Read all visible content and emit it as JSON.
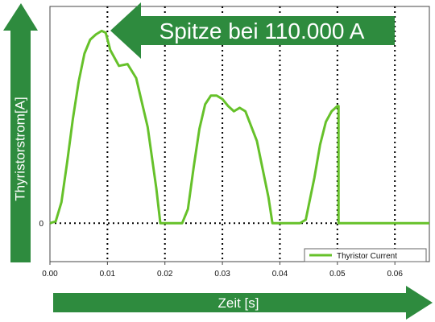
{
  "colors": {
    "arrow_green": "#2e8b3e",
    "series_green": "#66c12a",
    "grid": "#000000",
    "frame": "#444444"
  },
  "chart_data": {
    "type": "line",
    "title": "",
    "xlabel": "Zeit [s]",
    "ylabel": "Thyristorstrom[A]",
    "xlim": [
      0.0,
      0.066
    ],
    "ylim": [
      -22000,
      124000
    ],
    "x_ticks": [
      0.0,
      0.01,
      0.02,
      0.03,
      0.04,
      0.05,
      0.06
    ],
    "x_tick_labels": [
      "0.00",
      "0.01",
      "0.02",
      "0.03",
      "0.04",
      "0.05",
      "0.06"
    ],
    "y_ticks": [
      0
    ],
    "y_tick_labels": [
      "0"
    ],
    "grid": "dotted vertical lines at x ticks, dotted horizontal line at y = 0",
    "legend_position": "bottom-right",
    "annotation": "Spitze bei 110.000 A",
    "series": [
      {
        "name": "Thyristor Current",
        "color": "#66c12a",
        "x": [
          0.0,
          0.001,
          0.002,
          0.003,
          0.004,
          0.005,
          0.006,
          0.007,
          0.008,
          0.009,
          0.0097,
          0.0105,
          0.012,
          0.0135,
          0.015,
          0.017,
          0.0185,
          0.0192,
          0.021,
          0.023,
          0.024,
          0.025,
          0.026,
          0.027,
          0.028,
          0.029,
          0.03,
          0.031,
          0.032,
          0.033,
          0.034,
          0.036,
          0.038,
          0.0387,
          0.041,
          0.0435,
          0.0445,
          0.046,
          0.047,
          0.048,
          0.049,
          0.05,
          0.0502,
          0.0502,
          0.066
        ],
        "y": [
          0,
          1000,
          12000,
          35000,
          60000,
          81000,
          97000,
          105000,
          108000,
          110000,
          109000,
          99000,
          90000,
          91000,
          83000,
          55000,
          20000,
          0,
          0,
          0,
          8000,
          32000,
          54000,
          68000,
          73000,
          73000,
          71000,
          67000,
          64000,
          66000,
          64000,
          47000,
          15000,
          0,
          0,
          0,
          2000,
          26000,
          45000,
          58000,
          64000,
          67000,
          67000,
          0,
          0
        ]
      }
    ]
  }
}
